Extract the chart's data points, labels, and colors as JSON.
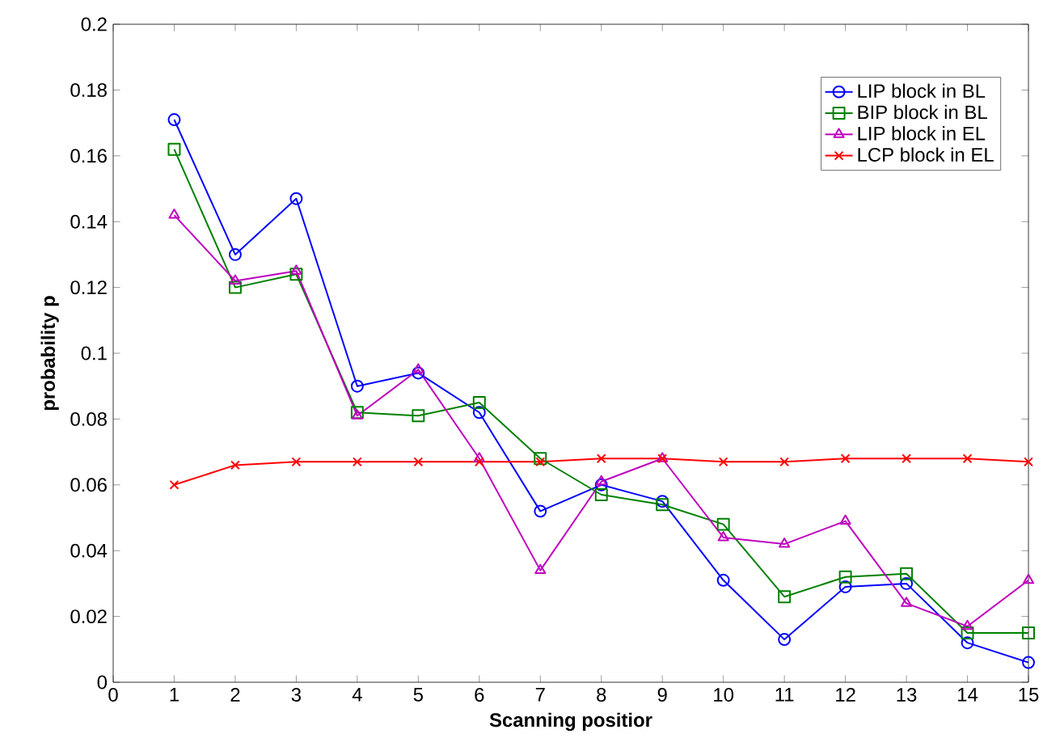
{
  "chart_data": {
    "type": "line",
    "xlabel": "Scanning positior",
    "ylabel": "probability p",
    "xlim": [
      0,
      15
    ],
    "ylim": [
      0,
      0.2
    ],
    "xticks": [
      0,
      1,
      2,
      3,
      4,
      5,
      6,
      7,
      8,
      9,
      10,
      11,
      12,
      13,
      14,
      15
    ],
    "yticks": [
      0,
      0.02,
      0.04,
      0.06,
      0.08,
      0.1,
      0.12,
      0.14,
      0.16,
      0.18,
      0.2
    ],
    "x": [
      1,
      2,
      3,
      4,
      5,
      6,
      7,
      8,
      9,
      10,
      11,
      12,
      13,
      14,
      15
    ],
    "legend": "top right",
    "grid": false,
    "series": [
      {
        "name": "LIP block in BL",
        "color": "#0000ff",
        "marker": "circle",
        "values": [
          0.171,
          0.13,
          0.147,
          0.09,
          0.094,
          0.082,
          0.052,
          0.06,
          0.055,
          0.031,
          0.013,
          0.029,
          0.03,
          0.012,
          0.006
        ]
      },
      {
        "name": "BIP block in BL",
        "color": "#008000",
        "marker": "square",
        "values": [
          0.162,
          0.12,
          0.124,
          0.082,
          0.081,
          0.085,
          0.068,
          0.057,
          0.054,
          0.048,
          0.026,
          0.032,
          0.033,
          0.015,
          0.015
        ]
      },
      {
        "name": "LIP block in EL",
        "color": "#bf00bf",
        "marker": "triangle",
        "values": [
          0.142,
          0.122,
          0.125,
          0.081,
          0.095,
          0.068,
          0.034,
          0.061,
          0.068,
          0.044,
          0.042,
          0.049,
          0.024,
          0.017,
          0.031
        ]
      },
      {
        "name": "LCP block in EL",
        "color": "#ff0000",
        "marker": "cross",
        "values": [
          0.06,
          0.066,
          0.067,
          0.067,
          0.067,
          0.067,
          0.067,
          0.068,
          0.068,
          0.067,
          0.067,
          0.068,
          0.068,
          0.068,
          0.067
        ]
      }
    ]
  }
}
